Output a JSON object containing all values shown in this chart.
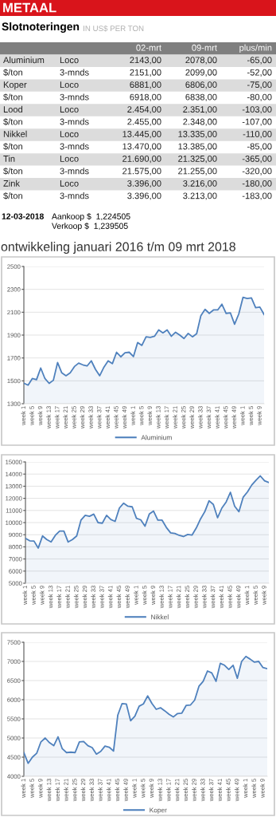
{
  "chart_data": [
    {
      "type": "other",
      "title": "METAAL",
      "subtitle": "Slotnoteringen",
      "annotations": [
        "IN US$ PER TON"
      ]
    },
    {
      "type": "other",
      "categories": [
        null,
        null,
        "02-mrt",
        "09-mrt",
        "plus/min"
      ],
      "annotations": [
        "Aluminium",
        "Loco",
        "2143,00",
        "2078,00",
        "-65,00",
        "$/ton",
        "3-mnds",
        "2151,00",
        "2099,00",
        "-52,00",
        "Koper",
        "Loco",
        "6881,00",
        "6806,00",
        "-75,00",
        "$/ton",
        "3-mnds",
        "6918,00",
        "6838,00",
        "-80,00",
        "Lood",
        "Loco",
        "2.454,00",
        "2.351,00",
        "-103,00",
        "$/ton",
        "3-mnds",
        "2.455,00",
        "2.348,00",
        "-107,00",
        "Nikkel",
        "Loco",
        "13.445,00",
        "13.335,00",
        "-110,00",
        "$/ton",
        "3-mnds",
        "13.470,00",
        "13.385,00",
        "-85,00",
        "Tin",
        "Loco",
        "21.690,00",
        "21.325,00",
        "-365,00",
        "$/ton",
        "3-mnds",
        "21.575,00",
        "21.255,00",
        "-320,00",
        "Zink",
        "Loco",
        "3.396,00",
        "3.216,00",
        "-180,00",
        "$/ton",
        "3-mnds",
        "3.396,00",
        "3.213,00",
        "-183,00"
      ]
    },
    {
      "type": "other",
      "annotations": [
        "12-03-2018",
        "Aankoop $  1,224505",
        "Verkoop $  1,239505"
      ]
    },
    {
      "type": "area",
      "title": "ontwikkeling januari 2016 t/m 09 mrt 2018",
      "legend": "bottom",
      "grid": "y",
      "ylim": [
        1300,
        2500
      ],
      "yticks": [
        1300,
        1500,
        1700,
        1900,
        2100,
        2300,
        2500
      ],
      "categories": [
        "week 1",
        null,
        "week 5",
        null,
        "week 9",
        null,
        "week 13",
        null,
        "week 17",
        null,
        "week 21",
        null,
        "week 25",
        null,
        "week 29",
        null,
        "week 33",
        null,
        "week 37",
        null,
        "week 41",
        null,
        "week 45",
        null,
        "week 49",
        null,
        "week 1",
        null,
        "week 5",
        null,
        "week 9",
        null,
        "week 13",
        null,
        "week 17",
        null,
        "week 21",
        null,
        "week 25",
        null,
        "week 29",
        null,
        "week 33",
        null,
        "week 37",
        null,
        "week 41",
        null,
        "week 45",
        null,
        "week 49",
        null,
        "week 1",
        null,
        "week 5",
        null,
        "week 9",
        null
      ],
      "series": [
        {
          "name": "Aluminium",
          "color": "#4f81bd",
          "values": [
            1480,
            1462,
            1520,
            1510,
            1612,
            1520,
            1478,
            1505,
            1660,
            1570,
            1545,
            1570,
            1625,
            1655,
            1640,
            1630,
            1675,
            1600,
            1545,
            1620,
            1675,
            1650,
            1750,
            1710,
            1745,
            1750,
            1712,
            1835,
            1810,
            1885,
            1880,
            1890,
            1945,
            1920,
            1945,
            1890,
            1925,
            1900,
            1870,
            1915,
            1885,
            1912,
            2070,
            2125,
            2090,
            2120,
            2120,
            2170,
            2090,
            2095,
            1995,
            2085,
            2230,
            2220,
            2225,
            2140,
            2145,
            2080
          ]
        }
      ]
    },
    {
      "type": "area",
      "legend": "bottom",
      "grid": "y",
      "ylim": [
        5000,
        15000
      ],
      "yticks": [
        5000,
        6000,
        7000,
        8000,
        9000,
        10000,
        11000,
        12000,
        13000,
        14000,
        15000
      ],
      "categories": [
        "week 1",
        null,
        "week 5",
        null,
        "week 9",
        null,
        "week 13",
        null,
        "week 17",
        null,
        "week 21",
        null,
        "week 25",
        null,
        "week 29",
        null,
        "week 33",
        null,
        "week 37",
        null,
        "week 41",
        null,
        "week 45",
        null,
        "week 49",
        null,
        "week 1",
        null,
        "week 5",
        null,
        "week 9",
        null,
        "week 13",
        null,
        "week 17",
        null,
        "week 21",
        null,
        "week 25",
        null,
        "week 29",
        null,
        "week 33",
        null,
        "week 37",
        null,
        "week 41",
        null,
        "week 45",
        null,
        "week 49",
        null,
        "week 1",
        null,
        "week 5",
        null,
        "week 9",
        null
      ],
      "series": [
        {
          "name": "Nikkel",
          "color": "#4f81bd",
          "values": [
            8700,
            8500,
            8480,
            7900,
            8900,
            8600,
            8400,
            8950,
            9300,
            9300,
            8400,
            8600,
            8900,
            10200,
            10600,
            10520,
            10700,
            10000,
            9950,
            10600,
            10250,
            10100,
            11200,
            11600,
            11350,
            11300,
            10350,
            10230,
            9700,
            10700,
            10950,
            10200,
            10200,
            9600,
            9150,
            9100,
            8950,
            8850,
            9020,
            8970,
            9550,
            10300,
            10900,
            11800,
            11500,
            10400,
            11200,
            11700,
            12500,
            11350,
            10900,
            12100,
            12530,
            13100,
            13500,
            13850,
            13440,
            13300
          ]
        }
      ]
    },
    {
      "type": "area",
      "legend": "bottom",
      "grid": "y",
      "ylim": [
        4000,
        7500
      ],
      "yticks": [
        4000,
        4500,
        5000,
        5500,
        6000,
        6500,
        7000,
        7500
      ],
      "categories": [
        "week 1",
        null,
        "week 5",
        null,
        "week 9",
        null,
        "week 13",
        null,
        "week 17",
        null,
        "week 21",
        null,
        "week 25",
        null,
        "week 29",
        null,
        "week 33",
        null,
        "week 37",
        null,
        "week 41",
        null,
        "week 45",
        null,
        "week 49",
        null,
        "week 1",
        null,
        "week 5",
        null,
        "week 9",
        null,
        "week 13",
        null,
        "week 17",
        null,
        "week 21",
        null,
        "week 25",
        null,
        "week 29",
        null,
        "week 33",
        null,
        "week 37",
        null,
        "week 41",
        null,
        "week 45",
        null,
        "week 49",
        null,
        "week 1",
        null,
        "week 5",
        null,
        "week 9",
        null
      ],
      "series": [
        {
          "name": "Koper",
          "color": "#4f81bd",
          "values": [
            4620,
            4340,
            4500,
            4600,
            4900,
            5000,
            4880,
            4800,
            5030,
            4720,
            4620,
            4630,
            4620,
            4900,
            4910,
            4800,
            4750,
            4580,
            4650,
            4790,
            4760,
            4660,
            5600,
            5900,
            5890,
            5450,
            5570,
            5830,
            5890,
            6100,
            5900,
            5750,
            5790,
            5710,
            5620,
            5550,
            5640,
            5650,
            5850,
            5860,
            5990,
            6350,
            6480,
            6750,
            6700,
            6480,
            6950,
            6900,
            6790,
            6900,
            6560,
            7000,
            7130,
            7060,
            6980,
            7000,
            6840,
            6810
          ]
        }
      ]
    }
  ]
}
